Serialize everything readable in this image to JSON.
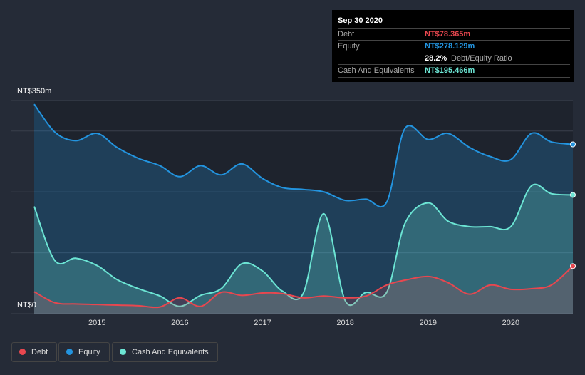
{
  "tooltip": {
    "date": "Sep 30 2020",
    "debt_label": "Debt",
    "debt_value": "NT$78.365m",
    "equity_label": "Equity",
    "equity_value": "NT$278.129m",
    "ratio_value": "28.2%",
    "ratio_label": "Debt/Equity Ratio",
    "cash_label": "Cash And Equivalents",
    "cash_value": "NT$195.466m"
  },
  "legend": [
    {
      "label": "Debt",
      "color": "#e8474f"
    },
    {
      "label": "Equity",
      "color": "#2394df"
    },
    {
      "label": "Cash And Equivalents",
      "color": "#6ce5d4"
    }
  ],
  "chart_data": {
    "type": "area",
    "ylabel_top": "NT$350m",
    "ylabel_bottom": "NT$0",
    "ylim": [
      0,
      350
    ],
    "xlim": [
      2014.24,
      2020.75
    ],
    "xticks": [
      "2015",
      "2016",
      "2017",
      "2018",
      "2019",
      "2020"
    ],
    "x": [
      2014.24,
      2014.49,
      2014.74,
      2015.0,
      2015.24,
      2015.5,
      2015.76,
      2016.0,
      2016.25,
      2016.5,
      2016.75,
      2017.0,
      2017.24,
      2017.49,
      2017.74,
      2018.0,
      2018.25,
      2018.5,
      2018.72,
      2019.0,
      2019.24,
      2019.5,
      2019.75,
      2020.0,
      2020.25,
      2020.49,
      2020.75
    ],
    "series": [
      {
        "name": "Equity",
        "color": "#2394df",
        "values": [
          344,
          298,
          284,
          296,
          273,
          255,
          243,
          225,
          243,
          228,
          246,
          222,
          207,
          204,
          200,
          186,
          188,
          183,
          304,
          286,
          296,
          273,
          258,
          253,
          296,
          282,
          278
        ]
      },
      {
        "name": "Cash And Equivalents",
        "color": "#6ce5d4",
        "values": [
          176,
          87,
          91,
          79,
          56,
          41,
          29,
          12,
          30,
          41,
          82,
          70,
          37,
          33,
          164,
          21,
          35,
          35,
          148,
          182,
          152,
          143,
          143,
          143,
          210,
          197,
          195
        ]
      },
      {
        "name": "Debt",
        "color": "#e8474f",
        "values": [
          36,
          18,
          16,
          15,
          14,
          13,
          11,
          26,
          12,
          35,
          30,
          34,
          33,
          26,
          29,
          26,
          29,
          47,
          55,
          61,
          51,
          32,
          47,
          40,
          41,
          47,
          78
        ]
      }
    ]
  }
}
